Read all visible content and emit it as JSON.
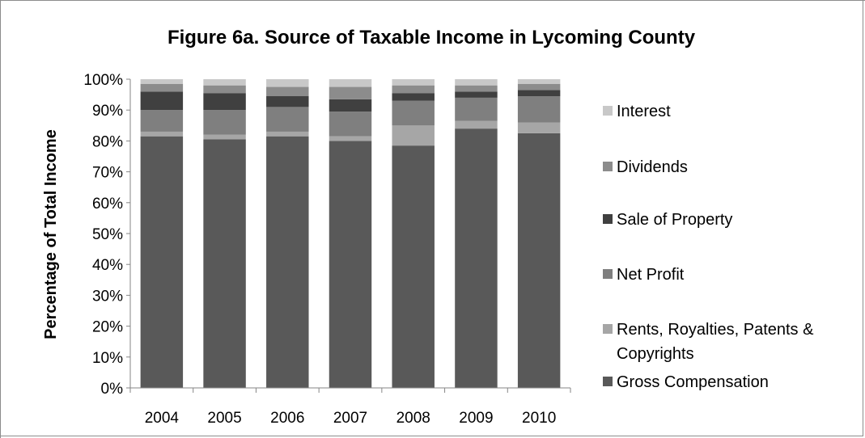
{
  "chart_data": {
    "type": "bar",
    "stacked": true,
    "title": "Figure 6a. Source of Taxable Income in Lycoming County",
    "xlabel": "",
    "ylabel": "Percentage of Total Income",
    "ylim": [
      0,
      100
    ],
    "y_ticks": [
      "0%",
      "10%",
      "20%",
      "30%",
      "40%",
      "50%",
      "60%",
      "70%",
      "80%",
      "90%",
      "100%"
    ],
    "categories": [
      "2004",
      "2005",
      "2006",
      "2007",
      "2008",
      "2009",
      "2010"
    ],
    "legend_position": "right",
    "grid": false,
    "series": [
      {
        "name": "Gross Compensation",
        "color": "#595959",
        "values": [
          81.5,
          80.5,
          81.5,
          80.0,
          78.5,
          84.0,
          82.5
        ]
      },
      {
        "name": "Rents, Royalties, Patents & Copyrights",
        "color": "#a6a6a6",
        "values": [
          1.5,
          1.5,
          1.5,
          1.5,
          6.5,
          2.5,
          3.5
        ]
      },
      {
        "name": "Net Profit",
        "color": "#7f7f7f",
        "values": [
          7.0,
          8.0,
          8.0,
          8.0,
          8.0,
          7.5,
          8.5
        ]
      },
      {
        "name": "Sale of Property",
        "color": "#404040",
        "values": [
          6.0,
          5.5,
          3.5,
          4.0,
          2.5,
          2.0,
          2.0
        ]
      },
      {
        "name": "Dividends",
        "color": "#8c8c8c",
        "values": [
          2.5,
          2.5,
          3.0,
          4.0,
          2.5,
          2.0,
          2.0
        ]
      },
      {
        "name": "Interest",
        "color": "#c8c8c8",
        "values": [
          1.5,
          2.0,
          2.5,
          2.5,
          2.0,
          2.0,
          1.5
        ]
      }
    ],
    "legend_order": [
      "Interest",
      "Dividends",
      "Sale of Property",
      "Net Profit",
      "Rents, Royalties, Patents & Copyrights",
      "Gross Compensation"
    ],
    "legend_lines": {
      "Interest": [
        "Interest"
      ],
      "Dividends": [
        "Dividends"
      ],
      "Sale of Property": [
        "Sale of Property"
      ],
      "Net Profit": [
        "Net Profit"
      ],
      "Rents, Royalties, Patents & Copyrights": [
        "Rents, Royalties, Patents &",
        "Copyrights"
      ],
      "Gross Compensation": [
        "Gross Compensation"
      ]
    }
  }
}
